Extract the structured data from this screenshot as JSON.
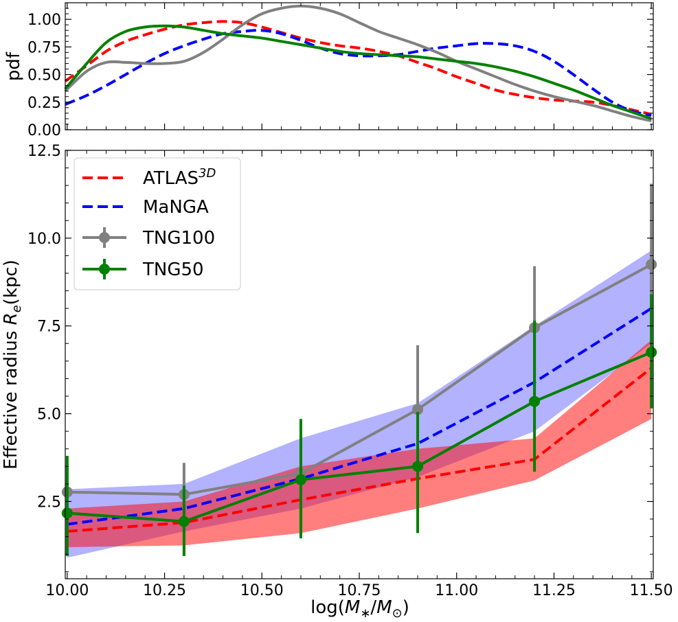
{
  "chart_data": [
    {
      "panel": "top",
      "type": "line",
      "title": "",
      "ylabel": "pdf",
      "xlabel": "",
      "xlim": [
        10.0,
        11.5
      ],
      "ylim": [
        0.0,
        1.15
      ],
      "yticks": [
        0.0,
        0.25,
        0.5,
        0.75,
        1.0
      ],
      "ytick_labels": [
        "0.00",
        "0.25",
        "0.50",
        "0.75",
        "1.00"
      ],
      "grid": false,
      "series": [
        {
          "name": "ATLAS3D",
          "color": "#ff0000",
          "style": "dashed",
          "x": [
            9.995,
            10.05,
            10.1,
            10.15,
            10.2,
            10.25,
            10.3,
            10.35,
            10.4,
            10.45,
            10.5,
            10.55,
            10.6,
            10.65,
            10.7,
            10.75,
            10.8,
            10.85,
            10.9,
            10.95,
            11.0,
            11.05,
            11.1,
            11.15,
            11.2,
            11.25,
            11.3,
            11.35,
            11.4,
            11.45,
            11.5
          ],
          "y": [
            0.44,
            0.58,
            0.71,
            0.8,
            0.86,
            0.91,
            0.95,
            0.97,
            0.98,
            0.97,
            0.93,
            0.88,
            0.83,
            0.79,
            0.76,
            0.74,
            0.71,
            0.67,
            0.61,
            0.55,
            0.48,
            0.42,
            0.36,
            0.32,
            0.29,
            0.27,
            0.26,
            0.25,
            0.22,
            0.18,
            0.14
          ]
        },
        {
          "name": "MaNGA",
          "color": "#0000ff",
          "style": "dashed",
          "x": [
            9.995,
            10.05,
            10.1,
            10.15,
            10.2,
            10.25,
            10.3,
            10.35,
            10.4,
            10.45,
            10.5,
            10.55,
            10.6,
            10.65,
            10.7,
            10.75,
            10.8,
            10.85,
            10.9,
            10.95,
            11.0,
            11.05,
            11.1,
            11.15,
            11.2,
            11.25,
            11.3,
            11.35,
            11.4,
            11.45,
            11.5
          ],
          "y": [
            0.23,
            0.31,
            0.4,
            0.5,
            0.6,
            0.69,
            0.76,
            0.82,
            0.87,
            0.89,
            0.9,
            0.87,
            0.81,
            0.74,
            0.69,
            0.67,
            0.67,
            0.68,
            0.71,
            0.74,
            0.76,
            0.78,
            0.78,
            0.76,
            0.71,
            0.62,
            0.5,
            0.37,
            0.25,
            0.17,
            0.13
          ]
        },
        {
          "name": "TNG100",
          "color": "#808080",
          "style": "solid",
          "x": [
            9.995,
            10.05,
            10.1,
            10.15,
            10.2,
            10.25,
            10.3,
            10.35,
            10.4,
            10.45,
            10.5,
            10.55,
            10.6,
            10.65,
            10.7,
            10.75,
            10.8,
            10.85,
            10.9,
            10.95,
            11.0,
            11.05,
            11.1,
            11.15,
            11.2,
            11.25,
            11.3,
            11.35,
            11.4,
            11.45,
            11.5
          ],
          "y": [
            0.35,
            0.53,
            0.61,
            0.61,
            0.6,
            0.6,
            0.62,
            0.7,
            0.82,
            0.95,
            1.05,
            1.1,
            1.12,
            1.1,
            1.05,
            0.97,
            0.89,
            0.83,
            0.77,
            0.7,
            0.62,
            0.55,
            0.48,
            0.41,
            0.35,
            0.3,
            0.26,
            0.22,
            0.17,
            0.12,
            0.08
          ]
        },
        {
          "name": "TNG50",
          "color": "#008000",
          "style": "solid",
          "x": [
            9.995,
            10.05,
            10.1,
            10.15,
            10.2,
            10.25,
            10.3,
            10.35,
            10.4,
            10.45,
            10.5,
            10.55,
            10.6,
            10.65,
            10.7,
            10.75,
            10.8,
            10.85,
            10.9,
            10.95,
            11.0,
            11.05,
            11.1,
            11.15,
            11.2,
            11.25,
            11.3,
            11.35,
            11.4,
            11.45,
            11.5
          ],
          "y": [
            0.37,
            0.6,
            0.79,
            0.89,
            0.93,
            0.94,
            0.93,
            0.9,
            0.87,
            0.85,
            0.83,
            0.8,
            0.77,
            0.74,
            0.71,
            0.69,
            0.68,
            0.67,
            0.66,
            0.64,
            0.62,
            0.6,
            0.57,
            0.53,
            0.48,
            0.42,
            0.36,
            0.29,
            0.22,
            0.16,
            0.1
          ]
        }
      ]
    },
    {
      "panel": "bottom",
      "type": "line",
      "title": "",
      "xlabel_parts": [
        "log(",
        "M",
        "∗",
        "/",
        "M",
        "⊙",
        ")"
      ],
      "ylabel_parts": [
        "Effective radius ",
        "R",
        "e",
        "(kpc)"
      ],
      "xlim": [
        9.995,
        11.505
      ],
      "ylim": [
        0.3,
        12.5
      ],
      "xticks": [
        10.0,
        10.25,
        10.5,
        10.75,
        11.0,
        11.25,
        11.5
      ],
      "xtick_labels": [
        "10.00",
        "10.25",
        "10.50",
        "10.75",
        "11.00",
        "11.25",
        "11.50"
      ],
      "yticks": [
        2.5,
        5.0,
        7.5,
        10.0,
        12.5
      ],
      "ytick_labels": [
        "2.5",
        "5.0",
        "7.5",
        "10.0",
        "12.5"
      ],
      "grid": false,
      "legend_position": "upper-left",
      "legend": [
        {
          "key": "atlas",
          "label": "ATLAS",
          "sup": "3D",
          "color": "#ff0000",
          "style": "dashed"
        },
        {
          "key": "manga",
          "label": "MaNGA",
          "color": "#0000ff",
          "style": "dashed"
        },
        {
          "key": "tng100",
          "label": "TNG100",
          "color": "#808080",
          "style": "errorbar"
        },
        {
          "key": "tng50",
          "label": "TNG50",
          "color": "#008000",
          "style": "errorbar"
        }
      ],
      "bands": [
        {
          "name": "MaNGA range",
          "color": "#0000ff",
          "opacity": 0.3,
          "x": [
            10.0,
            10.3,
            10.6,
            10.9,
            11.2,
            11.5
          ],
          "lower": [
            0.9,
            1.65,
            2.3,
            3.2,
            4.5,
            7.0
          ],
          "upper": [
            2.85,
            3.0,
            4.3,
            5.3,
            7.5,
            9.65
          ]
        },
        {
          "name": "ATLAS3D range",
          "color": "#ff0000",
          "opacity": 0.5,
          "x": [
            10.0,
            10.3,
            10.6,
            10.9,
            11.2,
            11.5
          ],
          "lower": [
            1.2,
            1.25,
            1.6,
            2.3,
            3.1,
            4.85
          ],
          "upper": [
            2.3,
            2.5,
            3.5,
            4.0,
            4.3,
            7.1
          ]
        }
      ],
      "series": [
        {
          "name": "ATLAS3D",
          "color": "#ff0000",
          "style": "dashed",
          "x": [
            10.0,
            10.3,
            10.6,
            10.9,
            11.2,
            11.5
          ],
          "y": [
            1.65,
            1.9,
            2.55,
            3.15,
            3.7,
            6.3
          ]
        },
        {
          "name": "MaNGA",
          "color": "#0000ff",
          "style": "dashed",
          "x": [
            10.0,
            10.3,
            10.6,
            10.9,
            11.2,
            11.5
          ],
          "y": [
            1.85,
            2.3,
            3.15,
            4.15,
            5.9,
            8.0
          ]
        },
        {
          "name": "TNG100",
          "color": "#808080",
          "style": "errorbar",
          "x": [
            10.0,
            10.3,
            10.6,
            10.9,
            11.2,
            11.5
          ],
          "y": [
            2.77,
            2.7,
            3.3,
            5.12,
            7.45,
            9.25
          ],
          "err_low": [
            0.95,
            0.95,
            2.05,
            3.35,
            5.75,
            7.5
          ],
          "err_high": [
            3.55,
            3.6,
            4.3,
            6.95,
            9.2,
            11.55
          ]
        },
        {
          "name": "TNG50",
          "color": "#008000",
          "style": "errorbar",
          "x": [
            10.0,
            10.3,
            10.6,
            10.9,
            11.2,
            11.5
          ],
          "y": [
            2.17,
            1.93,
            3.12,
            3.5,
            5.35,
            6.75
          ],
          "err_low": [
            0.95,
            0.95,
            1.45,
            1.6,
            3.35,
            5.15
          ],
          "err_high": [
            3.8,
            2.95,
            4.85,
            5.05,
            7.65,
            8.4
          ]
        }
      ]
    }
  ]
}
